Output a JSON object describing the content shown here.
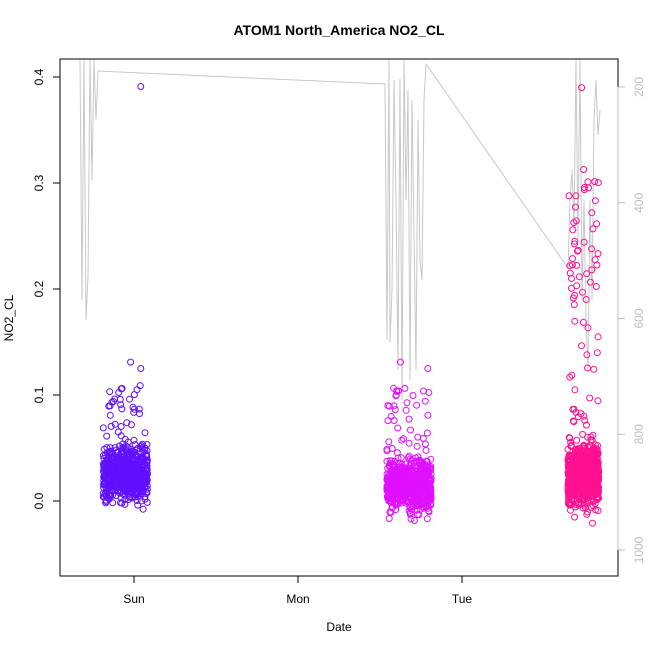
{
  "chart_data": {
    "type": "scatter",
    "title": "ATOM1 North_America NO2_CL",
    "xlabel": "Date",
    "ylabel": "NO2_CL",
    "x_ticks": [
      "Sun",
      "Mon",
      "Tue"
    ],
    "y_ticks": [
      "0.0",
      "0.1",
      "0.2",
      "0.3",
      "0.4"
    ],
    "ylim": [
      -0.065,
      0.41
    ],
    "secondary_axis": {
      "side": "right",
      "reversed": true,
      "ticks": [
        "200",
        "400",
        "600",
        "800",
        "1000"
      ],
      "range": [
        170,
        1020
      ],
      "color": "#bebebe"
    },
    "grid": false,
    "legend": "none",
    "colors": {
      "cluster_1": "#6010ff",
      "cluster_2": "#e010ff",
      "cluster_3": "#ff1090",
      "pressure_line": "#c8c8c8"
    },
    "series": [
      {
        "values": [
          {
            "x": "Sat 22:00",
            "y_range": [
              -0.02,
              0.13
            ],
            "center": 0.025,
            "spread": 0.02
          },
          {
            "x": "Sun 01:00",
            "y_range": [
              0.0,
              0.06
            ],
            "center": 0.02
          }
        ],
        "outliers": [
          [
            "Sat 23:30",
            0.131
          ],
          [
            "Sun 01:00",
            0.391
          ],
          [
            "Sun 01:00",
            0.125
          ]
        ]
      },
      {
        "values": [
          {
            "x": "Mon 13:00",
            "y_range": [
              -0.05,
              0.13
            ],
            "center": 0.015,
            "spread": 0.02
          }
        ],
        "outliers": [
          [
            "Mon 15:00",
            0.131
          ],
          [
            "Mon 19:00",
            0.125
          ]
        ]
      },
      {
        "values": [
          {
            "x": "Tue 16:30",
            "y_range": [
              -0.03,
              0.39
            ],
            "center": 0.025,
            "spread": 0.025
          }
        ],
        "outliers": [
          [
            "Tue 17:30",
            0.39
          ],
          [
            "Tue 16:30",
            0.245
          ],
          [
            "Tue 19:00",
            0.272
          ],
          [
            "Tue 19:00",
            0.218
          ]
        ]
      }
    ]
  }
}
